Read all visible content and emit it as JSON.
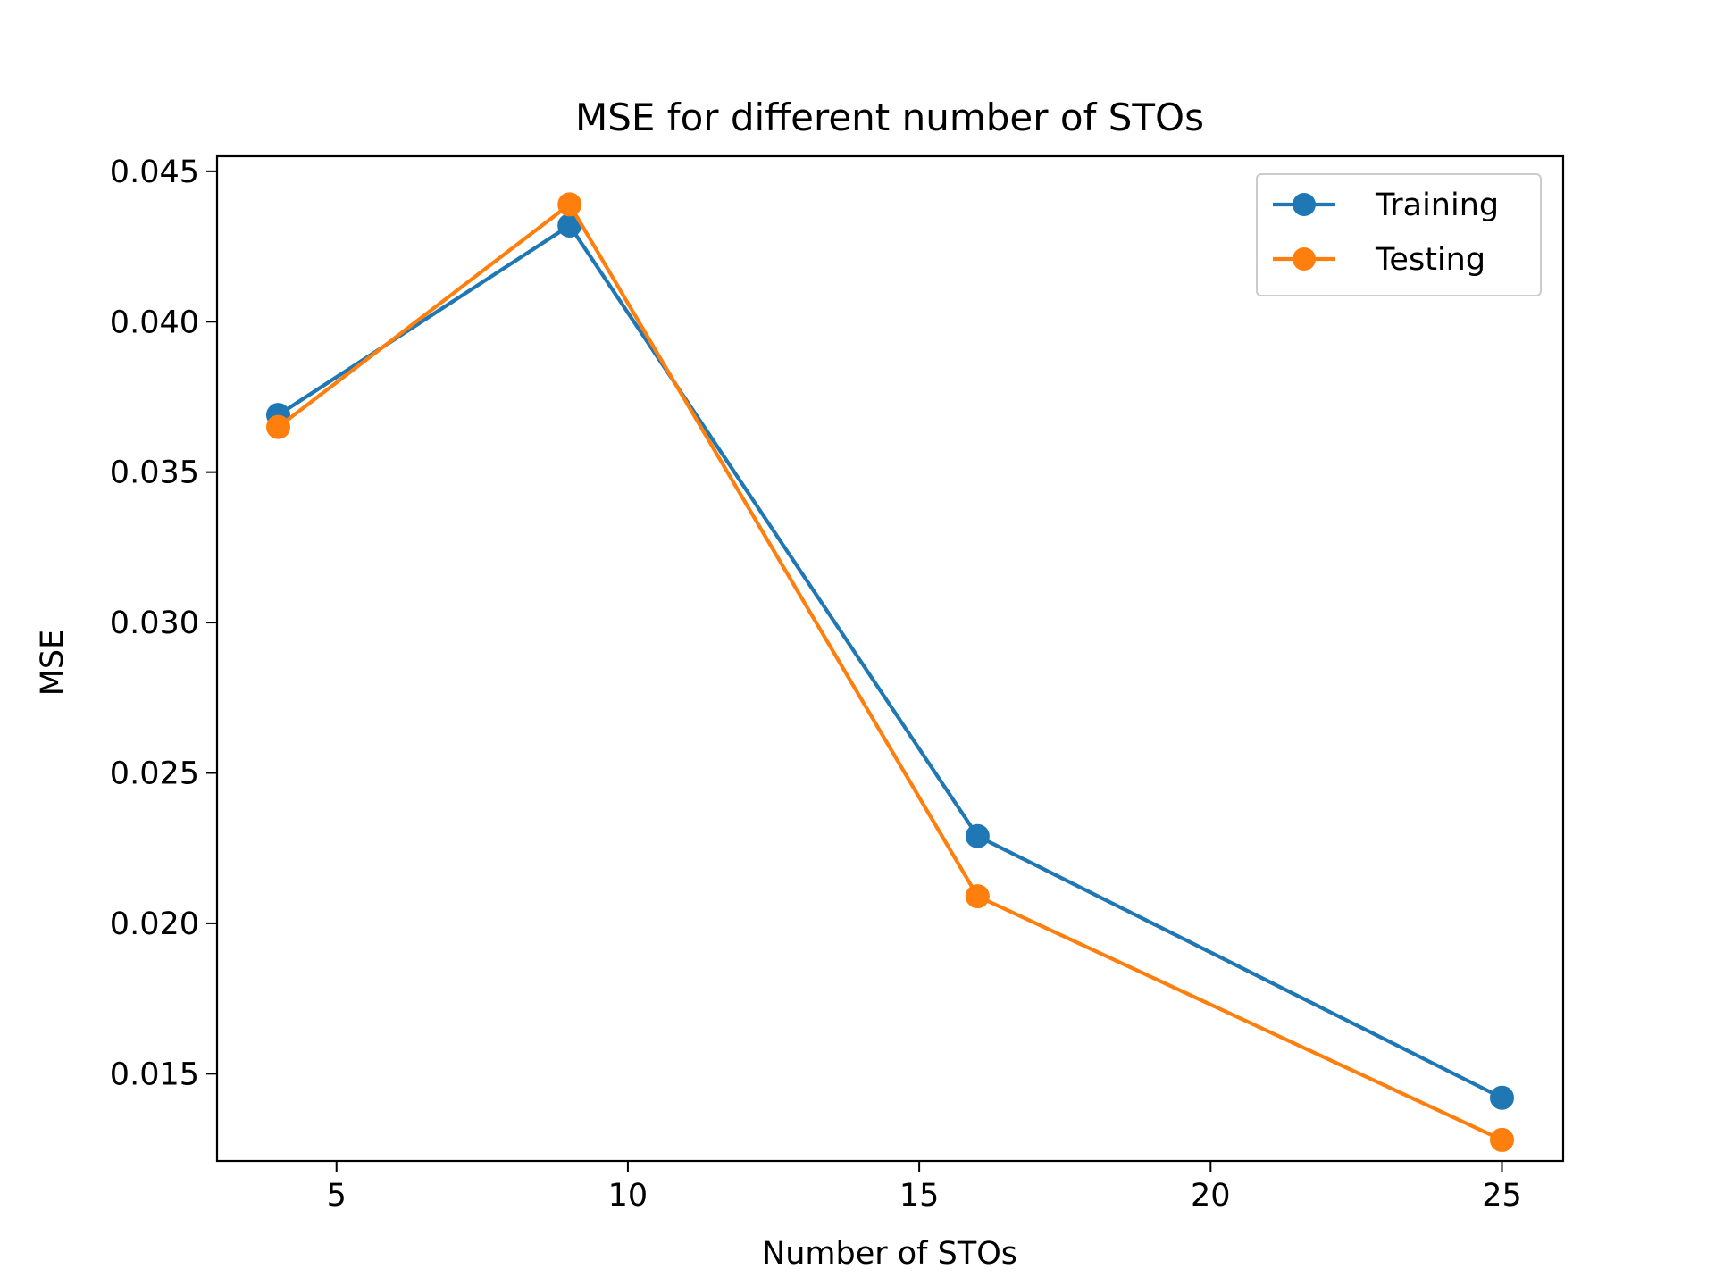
{
  "chart_data": {
    "type": "line",
    "title": "MSE for different number of STOs",
    "xlabel": "Number of STOs",
    "ylabel": "MSE",
    "x": [
      4,
      9,
      16,
      25
    ],
    "series": [
      {
        "name": "Training",
        "color": "#1f77b4",
        "values": [
          0.0369,
          0.0432,
          0.0229,
          0.0142
        ]
      },
      {
        "name": "Testing",
        "color": "#ff7f0e",
        "values": [
          0.0365,
          0.0439,
          0.0209,
          0.0128
        ]
      }
    ],
    "xlim": [
      2.95,
      26.05
    ],
    "ylim": [
      0.0121,
      0.0455
    ],
    "xticks": [
      5,
      10,
      15,
      20,
      25
    ],
    "xtick_labels": [
      "5",
      "10",
      "15",
      "20",
      "25"
    ],
    "yticks": [
      0.015,
      0.02,
      0.025,
      0.03,
      0.035,
      0.04,
      0.045
    ],
    "ytick_labels": [
      "0.015",
      "0.020",
      "0.025",
      "0.030",
      "0.035",
      "0.040",
      "0.045"
    ],
    "grid": false,
    "legend_position": "top-right",
    "marker": "circle"
  }
}
